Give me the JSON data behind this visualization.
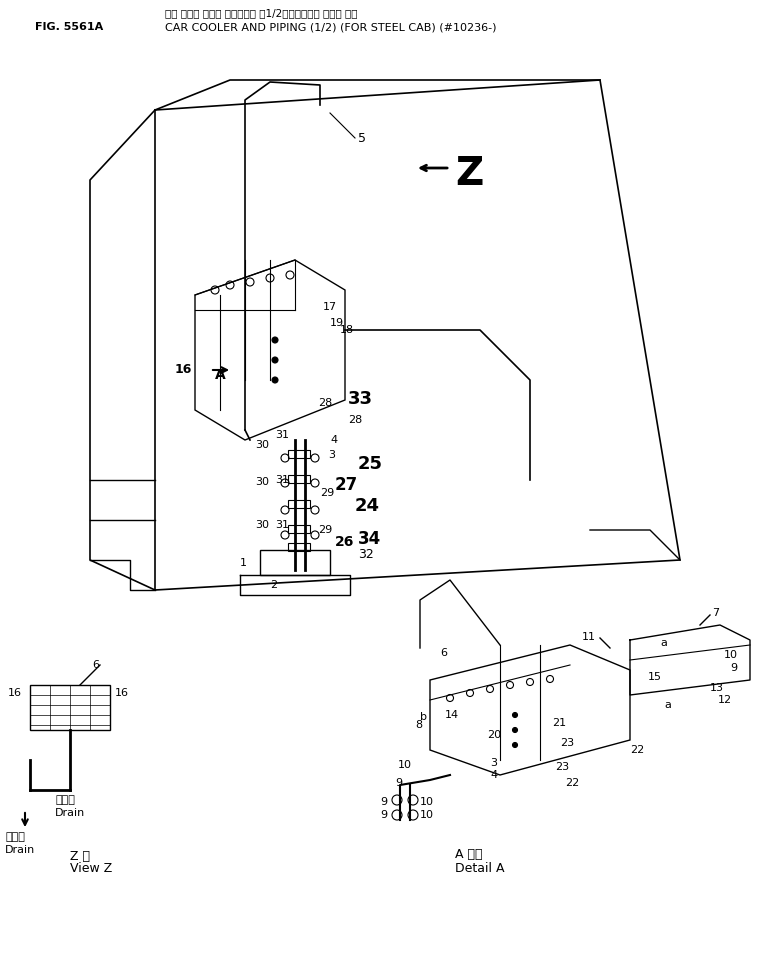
{
  "title_japanese": "カー クーラ および パイピング（１／２）（スチール キャブ 用）",
  "title_line1": "カー クーラ および パイピング  （1/2） （スチール キャブ 用）",
  "title_line2": "CAR COOLER AND PIPING (1/2) (FOR STEEL CAB) (#10236-)",
  "fig_label": "FIG. 5561A",
  "background_color": "#ffffff",
  "fig_color": "#000000"
}
